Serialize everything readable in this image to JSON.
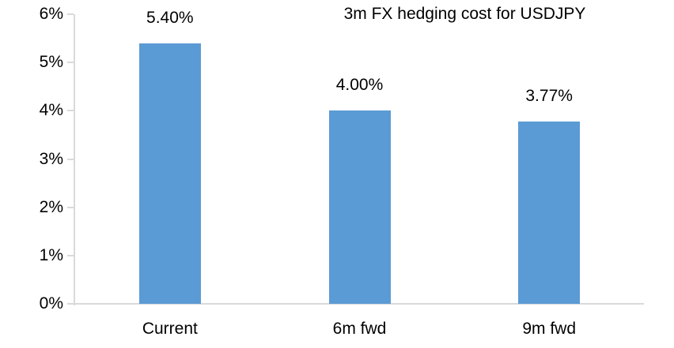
{
  "chart_data": {
    "type": "bar",
    "title": "3m FX hedging cost for USDJPY",
    "categories": [
      "Current",
      "6m fwd",
      "9m fwd"
    ],
    "values": [
      5.4,
      4.0,
      3.77
    ],
    "value_labels": [
      "5.40%",
      "4.00%",
      "3.77%"
    ],
    "xlabel": "",
    "ylabel": "",
    "ylim": [
      0,
      6
    ],
    "y_tick_step": 1,
    "y_tick_labels": [
      "0%",
      "1%",
      "2%",
      "3%",
      "4%",
      "5%",
      "6%"
    ],
    "grid": "off",
    "legend": "none",
    "colors": {
      "bar": "#5b9bd5",
      "axis": "#d9d9d9",
      "text": "#000000",
      "background": "#ffffff"
    }
  }
}
